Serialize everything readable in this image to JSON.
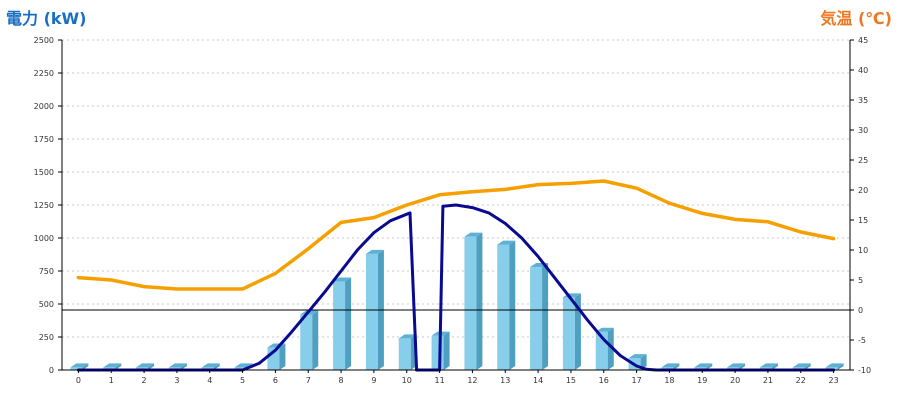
{
  "chart_data": {
    "type": "bar",
    "left_axis_title": "電力 (kW)",
    "right_axis_title": "気温 (℃)",
    "left_title_color": "#1a6fc0",
    "right_title_color": "#ee7722",
    "x": [
      "0",
      "1",
      "2",
      "3",
      "4",
      "5",
      "6",
      "7",
      "8",
      "9",
      "10",
      "11",
      "12",
      "13",
      "14",
      "15",
      "16",
      "17",
      "18",
      "19",
      "20",
      "21",
      "22",
      "23"
    ],
    "ylim_left": [
      0,
      2500
    ],
    "yticks_left": [
      "0",
      "250",
      "500",
      "750",
      "1000",
      "1250",
      "1500",
      "1750",
      "2000",
      "2250",
      "2500"
    ],
    "ylim_right": [
      -10,
      45
    ],
    "yticks_right": [
      "-10",
      "-5",
      "0",
      "5",
      "10",
      "15",
      "20",
      "25",
      "30",
      "35",
      "40",
      "45"
    ],
    "grid": true,
    "series": [
      {
        "kind": "bar",
        "axis": "left",
        "color": "#87ceeb",
        "values": [
          20,
          20,
          20,
          20,
          20,
          20,
          170,
          420,
          670,
          880,
          240,
          260,
          1010,
          950,
          780,
          550,
          290,
          90,
          20,
          20,
          20,
          20,
          20,
          20
        ]
      },
      {
        "kind": "line",
        "axis": "right",
        "color": "#f5a000",
        "values": [
          5.4,
          5.0,
          3.9,
          3.5,
          3.5,
          3.5,
          6.1,
          10.2,
          14.6,
          15.4,
          17.5,
          19.2,
          19.7,
          20.1,
          20.9,
          21.1,
          21.5,
          20.3,
          17.8,
          16.1,
          15.1,
          14.7,
          13.0,
          11.9
        ]
      },
      {
        "kind": "line",
        "axis": "left",
        "color": "#0a0a90",
        "x": [
          0,
          1,
          2,
          3,
          4,
          5,
          5.5,
          6,
          6.5,
          7,
          7.5,
          8,
          8.5,
          9,
          9.5,
          10,
          10.1,
          10.3,
          10.8,
          11.0,
          11.1,
          11.5,
          12,
          12.5,
          13,
          13.5,
          14,
          14.5,
          15,
          15.5,
          16,
          16.5,
          17,
          17.3,
          17.6,
          18,
          19,
          20,
          21,
          22,
          23
        ],
        "values": [
          0,
          0,
          0,
          0,
          0,
          0,
          50,
          150,
          290,
          440,
          590,
          750,
          910,
          1040,
          1130,
          1180,
          1190,
          0,
          0,
          0,
          1240,
          1250,
          1230,
          1190,
          1110,
          1000,
          860,
          700,
          540,
          380,
          230,
          110,
          30,
          5,
          0,
          0,
          0,
          0,
          0,
          0,
          0
        ]
      }
    ],
    "reference_line": {
      "axis": "right",
      "value": 0,
      "color": "#000000"
    }
  }
}
